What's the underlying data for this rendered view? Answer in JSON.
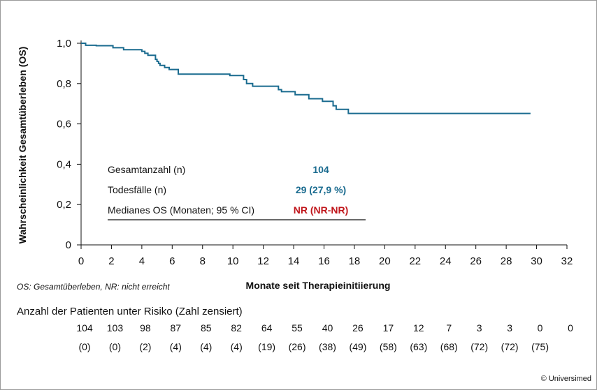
{
  "chart_data": {
    "type": "line",
    "xlabel": "Monate seit Therapieinitiierung",
    "ylabel": "Wahrscheinlichkeit Gesamtüberleben (OS)",
    "xlim": [
      0,
      32
    ],
    "ylim": [
      0,
      1.0
    ],
    "x_ticks": [
      0,
      2,
      4,
      6,
      8,
      10,
      12,
      14,
      16,
      18,
      20,
      22,
      24,
      26,
      28,
      30,
      32
    ],
    "y_ticks": [
      "0",
      "0,2",
      "0,4",
      "0,6",
      "0,8",
      "1,0"
    ],
    "y_tick_values": [
      0,
      0.2,
      0.4,
      0.6,
      0.8,
      1.0
    ],
    "grid": false,
    "line_color": "#1a6b8f",
    "series": [
      {
        "x": [
          0,
          0.3,
          0.3,
          1.0,
          1.0,
          2.1,
          2.1,
          2.8,
          2.8,
          4.0,
          4.0,
          4.2,
          4.2,
          4.4,
          4.4,
          4.9,
          4.9,
          5.0,
          5.0,
          5.1,
          5.1,
          5.2,
          5.2,
          5.5,
          5.5,
          5.8,
          5.8,
          6.4,
          6.4,
          9.8,
          9.8,
          10.7,
          10.7,
          10.9,
          10.9,
          11.3,
          11.3,
          13.0,
          13.0,
          13.2,
          13.2,
          14.1,
          14.1,
          15.0,
          15.0,
          15.9,
          15.9,
          16.6,
          16.6,
          16.8,
          16.8,
          17.6,
          17.6,
          29.6
        ],
        "y": [
          1.0,
          1.0,
          0.99,
          0.99,
          0.988,
          0.988,
          0.978,
          0.978,
          0.968,
          0.968,
          0.96,
          0.96,
          0.95,
          0.95,
          0.94,
          0.94,
          0.92,
          0.92,
          0.91,
          0.91,
          0.9,
          0.9,
          0.89,
          0.89,
          0.88,
          0.88,
          0.87,
          0.87,
          0.847,
          0.847,
          0.84,
          0.84,
          0.82,
          0.82,
          0.8,
          0.8,
          0.787,
          0.787,
          0.77,
          0.77,
          0.76,
          0.76,
          0.745,
          0.745,
          0.725,
          0.725,
          0.712,
          0.712,
          0.69,
          0.69,
          0.672,
          0.672,
          0.652,
          0.652
        ]
      }
    ],
    "stats": [
      {
        "label": "Gesamtanzahl (n)",
        "value": "104",
        "color": "#1a6b8f"
      },
      {
        "label": "Todesfälle (n)",
        "value": "29 (27,9 %)",
        "color": "#1a6b8f"
      },
      {
        "label": "Medianes OS (Monaten; 95 % CI)",
        "value": "NR (NR-NR)",
        "color": "#c0161b"
      }
    ]
  },
  "footnote": "OS: Gesamtüberleben, NR: nicht erreicht",
  "risk_table": {
    "title": "Anzahl der Patienten unter Risiko (Zahl zensiert)",
    "at_risk": [
      "104",
      "103",
      "98",
      "87",
      "85",
      "82",
      "64",
      "55",
      "40",
      "26",
      "17",
      "12",
      "7",
      "3",
      "3",
      "0",
      "0"
    ],
    "censored": [
      "(0)",
      "(0)",
      "(2)",
      "(4)",
      "(4)",
      "(4)",
      "(19)",
      "(26)",
      "(38)",
      "(49)",
      "(58)",
      "(63)",
      "(68)",
      "(72)",
      "(72)",
      "(75)",
      ""
    ]
  },
  "copyright": "© Universimed"
}
